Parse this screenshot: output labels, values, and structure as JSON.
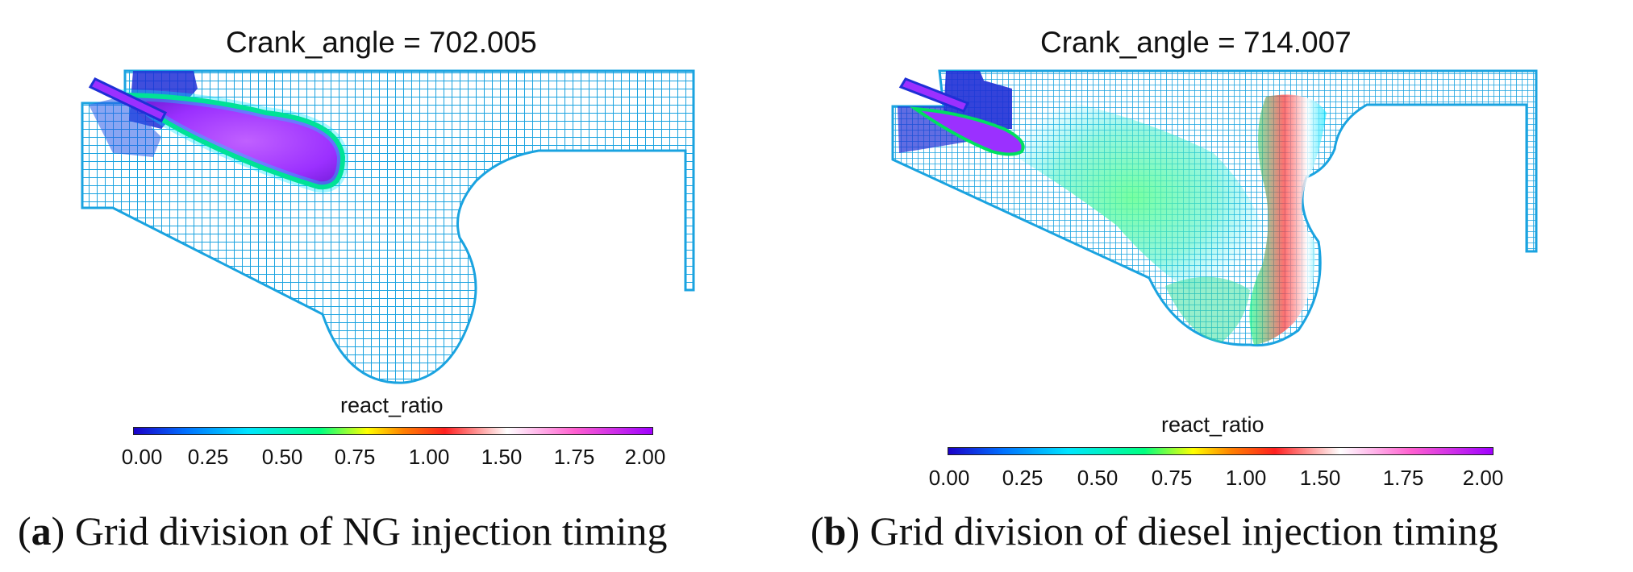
{
  "panels": [
    {
      "title": "Crank_angle = 702.005",
      "colorbar": {
        "label": "react_ratio",
        "ticks": [
          "0.00",
          "0.25",
          "0.50",
          "0.75",
          "1.00",
          "1.50",
          "1.75",
          "2.00"
        ]
      },
      "caption": {
        "letter": "a",
        "text": "Grid division of NG injection timing"
      }
    },
    {
      "title": "Crank_angle = 714.007",
      "colorbar": {
        "label": "react_ratio",
        "ticks": [
          "0.00",
          "0.25",
          "0.50",
          "0.75",
          "1.00",
          "1.50",
          "1.75",
          "2.00"
        ]
      },
      "caption": {
        "letter": "b",
        "text": "Grid division of diesel injection timing"
      }
    }
  ],
  "colors": {
    "mesh_line": "#1aa3e0",
    "mesh_fill": "#dff3fb",
    "spray_core": "#9b30ff",
    "spray_edge": "#00e060",
    "injector": "#1e2fd6"
  },
  "colormap": [
    "#1a00c8",
    "#0070ff",
    "#00e5ff",
    "#00ff80",
    "#ffff00",
    "#ff8000",
    "#ff2020",
    "#ffffff",
    "#ff60d0",
    "#a000ff"
  ]
}
